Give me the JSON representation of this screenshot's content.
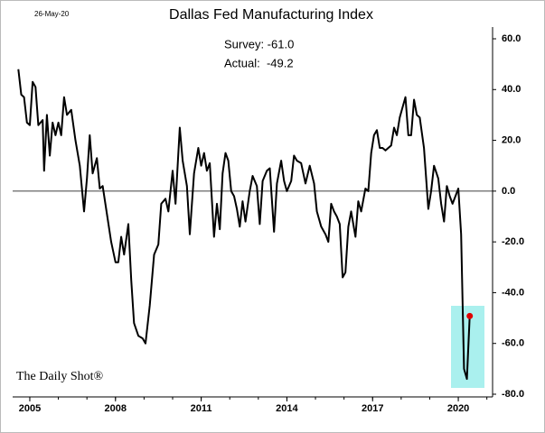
{
  "chart_data": {
    "type": "line",
    "title": "Dallas Fed Manufacturing Index",
    "date_note": "26-May-20",
    "annotations": [
      "Survey: -61.0",
      "Actual:  -49.2"
    ],
    "source": "The Daily Shot®",
    "xlim": [
      2004.4,
      2021.2
    ],
    "xticks": [
      2005,
      2008,
      2011,
      2014,
      2017,
      2020
    ],
    "ylim": [
      -80,
      60
    ],
    "yticks": [
      {
        "value": -80,
        "label": "-80.0"
      },
      {
        "value": -60,
        "label": "-60.0"
      },
      {
        "value": -40,
        "label": "-40.0"
      },
      {
        "value": -20,
        "label": "-20.0"
      },
      {
        "value": 0,
        "label": "0.0"
      },
      {
        "value": 20,
        "label": "20.0"
      },
      {
        "value": 40,
        "label": "40.0"
      },
      {
        "value": 60,
        "label": "60.0"
      }
    ],
    "series": [
      {
        "name": "Dallas Fed Manufacturing Index",
        "color": "#000000",
        "x": [
          2004.6,
          2004.7,
          2004.8,
          2004.9,
          2005.0,
          2005.1,
          2005.2,
          2005.3,
          2005.45,
          2005.5,
          2005.6,
          2005.7,
          2005.8,
          2005.9,
          2006.0,
          2006.1,
          2006.2,
          2006.3,
          2006.45,
          2006.6,
          2006.75,
          2006.9,
          2007.0,
          2007.1,
          2007.2,
          2007.35,
          2007.45,
          2007.55,
          2007.7,
          2007.85,
          2008.0,
          2008.1,
          2008.2,
          2008.3,
          2008.45,
          2008.55,
          2008.65,
          2008.8,
          2008.95,
          2009.05,
          2009.2,
          2009.35,
          2009.5,
          2009.6,
          2009.75,
          2009.85,
          2010.0,
          2010.1,
          2010.25,
          2010.35,
          2010.5,
          2010.6,
          2010.75,
          2010.9,
          2011.0,
          2011.1,
          2011.2,
          2011.3,
          2011.45,
          2011.55,
          2011.65,
          2011.75,
          2011.85,
          2011.95,
          2012.05,
          2012.15,
          2012.25,
          2012.35,
          2012.45,
          2012.55,
          2012.7,
          2012.8,
          2012.95,
          2013.05,
          2013.15,
          2013.3,
          2013.4,
          2013.55,
          2013.65,
          2013.8,
          2013.9,
          2014.0,
          2014.15,
          2014.25,
          2014.35,
          2014.5,
          2014.65,
          2014.8,
          2014.95,
          2015.05,
          2015.2,
          2015.35,
          2015.45,
          2015.55,
          2015.65,
          2015.75,
          2015.85,
          2015.95,
          2016.05,
          2016.15,
          2016.25,
          2016.4,
          2016.5,
          2016.6,
          2016.75,
          2016.85,
          2016.95,
          2017.05,
          2017.15,
          2017.25,
          2017.35,
          2017.45,
          2017.55,
          2017.65,
          2017.75,
          2017.85,
          2017.95,
          2018.05,
          2018.15,
          2018.25,
          2018.35,
          2018.45,
          2018.55,
          2018.65,
          2018.8,
          2018.95,
          2019.05,
          2019.15,
          2019.3,
          2019.4,
          2019.5,
          2019.6,
          2019.7,
          2019.8,
          2019.9,
          2020.0,
          2020.1,
          2020.2,
          2020.3,
          2020.4
        ],
        "values": [
          48,
          38,
          37,
          27,
          26,
          43,
          41,
          26,
          28,
          8,
          30,
          14,
          27,
          22,
          27,
          22,
          37,
          30,
          32,
          20,
          10,
          -8,
          5,
          22,
          7,
          13,
          1,
          2,
          -9,
          -20,
          -28,
          -28,
          -18,
          -25,
          -13,
          -35,
          -52,
          -57,
          -58,
          -60,
          -45,
          -25,
          -21,
          -5,
          -3,
          -8,
          8,
          -5,
          25,
          12,
          2,
          -17,
          7,
          17,
          10,
          15,
          8,
          11,
          -18,
          -5,
          -15,
          7,
          15,
          12,
          0,
          -2,
          -7,
          -14,
          -4,
          -12,
          0,
          6,
          2,
          -13,
          4,
          8,
          9,
          -16,
          3,
          12,
          4,
          0,
          4,
          14,
          12,
          11,
          3,
          10,
          3,
          -8,
          -14,
          -17,
          -20,
          -5,
          -8,
          -10,
          -13,
          -34,
          -32,
          -14,
          -8,
          -18,
          -4,
          -8,
          1,
          0,
          15,
          22,
          24,
          17,
          17,
          16,
          17,
          18,
          25,
          22,
          29,
          33,
          37,
          22,
          22,
          36,
          30,
          29,
          17,
          -7,
          0,
          10,
          5,
          -5,
          -12,
          2,
          -2,
          -5,
          -2,
          1,
          -17,
          -70,
          -74,
          -49.2
        ]
      }
    ],
    "highlight_color": "#aaf0ee",
    "marker_color": "#e00000"
  }
}
